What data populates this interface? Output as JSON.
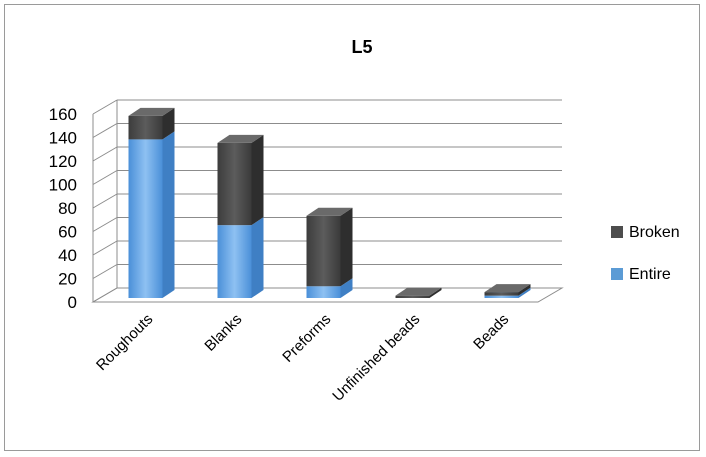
{
  "chart_data": {
    "type": "bar",
    "stacked": true,
    "three_d": true,
    "title": "L5",
    "categories": [
      "Roughouts",
      "Blanks",
      "Preforms",
      "Unfinished beads",
      "Beads"
    ],
    "series": [
      {
        "name": "Entire",
        "color": "#5b9bd5",
        "values": [
          135,
          62,
          10,
          0,
          2
        ]
      },
      {
        "name": "Broken",
        "color": "#4d4d4d",
        "values": [
          20,
          70,
          60,
          2,
          3
        ]
      }
    ],
    "ylim": [
      0,
      160
    ],
    "yticks": [
      0,
      20,
      40,
      60,
      80,
      100,
      120,
      140,
      160
    ],
    "grid": true,
    "legend_position": "right"
  }
}
